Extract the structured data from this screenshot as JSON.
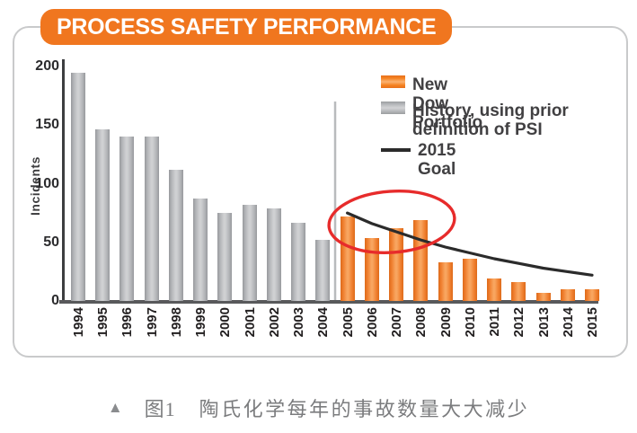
{
  "card": {
    "title": "PROCESS SAFETY PERFORMANCE"
  },
  "colors": {
    "title_bg": "#f0761f",
    "orange_bar": "#f58220",
    "gray_bar": "#b5b7ba",
    "goal_line": "#2b2b2b",
    "ellipse": "#e72b2b",
    "separator": "#b9bbbd",
    "axis": "#58595b",
    "caption_text": "#7b7c7e"
  },
  "chart_data": {
    "type": "bar",
    "title": "PROCESS SAFETY PERFORMANCE",
    "xlabel": "",
    "ylabel": "Incidents",
    "ylim": [
      0,
      200
    ],
    "yticks": [
      0,
      50,
      100,
      150,
      200
    ],
    "grid": false,
    "legend_position": "upper right",
    "categories": [
      "1994",
      "1995",
      "1996",
      "1997",
      "1998",
      "1999",
      "2000",
      "2001",
      "2002",
      "2003",
      "2004",
      "2005",
      "2006",
      "2007",
      "2008",
      "2009",
      "2010",
      "2011",
      "2012",
      "2013",
      "2014",
      "2015"
    ],
    "series": [
      {
        "name": "History, using prior definition of PSI",
        "color_key": "gray",
        "values": [
          195,
          146,
          140,
          140,
          112,
          87,
          75,
          82,
          79,
          67,
          52,
          null,
          null,
          null,
          null,
          null,
          null,
          null,
          null,
          null,
          null,
          null
        ]
      },
      {
        "name": "New Dow Portfolio",
        "color_key": "orange",
        "values": [
          null,
          null,
          null,
          null,
          null,
          null,
          null,
          null,
          null,
          null,
          null,
          72,
          54,
          62,
          69,
          33,
          36,
          19,
          16,
          7,
          10,
          10
        ]
      }
    ],
    "goal_line": {
      "name": "2015 Goal",
      "years": [
        "2005",
        "2006",
        "2007",
        "2008",
        "2009",
        "2010",
        "2011",
        "2012",
        "2013",
        "2014",
        "2015"
      ],
      "values": [
        75,
        66,
        59,
        52,
        46,
        41,
        36,
        32,
        28,
        25,
        22
      ]
    },
    "separator_between": [
      "2004",
      "2005"
    ],
    "annotations": [
      {
        "type": "ellipse",
        "note": "red circle around 2005-2008 bars",
        "years": "2005-2008"
      }
    ]
  },
  "legend": {
    "items": [
      {
        "label": "New Dow Portfolio",
        "swatch": "orange-bar"
      },
      {
        "label": "History, using prior definition of PSI",
        "swatch": "gray-bar"
      },
      {
        "label": "2015 Goal",
        "swatch": "black-line"
      }
    ]
  },
  "caption": {
    "marker": "▲",
    "figure_label": "图1",
    "text": "陶氏化学每年的事故数量大大减少"
  }
}
